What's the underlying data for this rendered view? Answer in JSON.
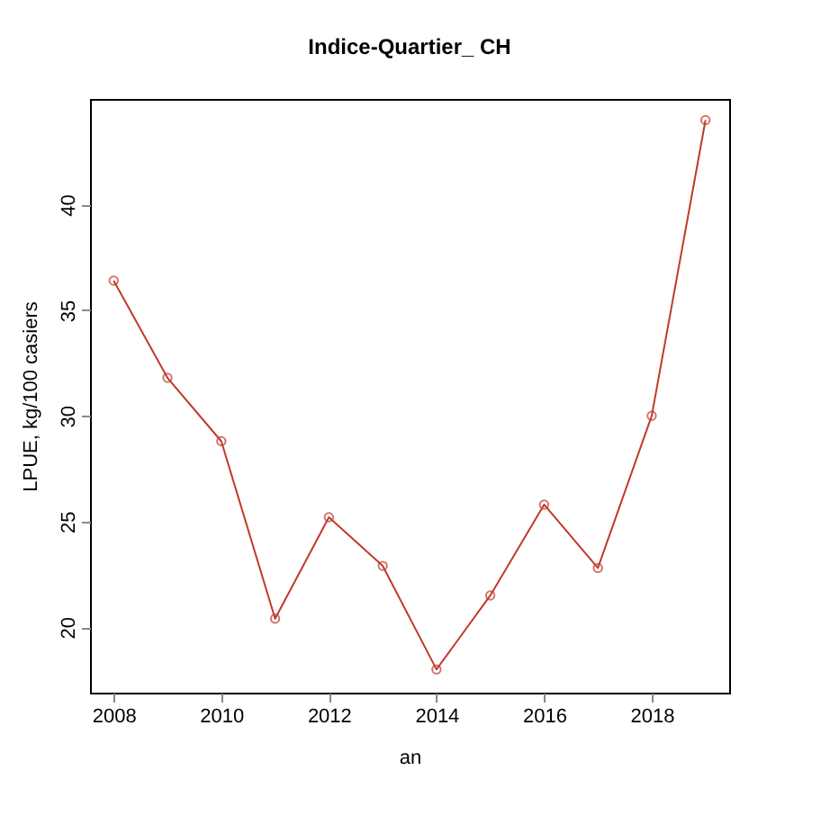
{
  "chart_data": {
    "type": "line",
    "title": "Indice-Quartier_ CH",
    "xlabel": "an",
    "ylabel": "LPUE, kg/100 casiers",
    "x": [
      2008,
      2009,
      2010,
      2011,
      2012,
      2013,
      2014,
      2015,
      2016,
      2017,
      2018,
      2019
    ],
    "series": [
      {
        "color": "#c0392b",
        "values": [
          36.4,
          31.8,
          28.8,
          20.4,
          25.2,
          22.9,
          18.0,
          21.5,
          25.8,
          22.8,
          30.0,
          44.0
        ]
      }
    ],
    "xlim": [
      2007.56,
      2019.44
    ],
    "ylim": [
      16.9,
      45.0
    ],
    "xticks": [
      2008,
      2010,
      2012,
      2014,
      2016,
      2018
    ],
    "yticks": [
      20,
      25,
      30,
      35,
      40
    ],
    "marker": "circle",
    "line_style": "solid",
    "grid": false
  }
}
